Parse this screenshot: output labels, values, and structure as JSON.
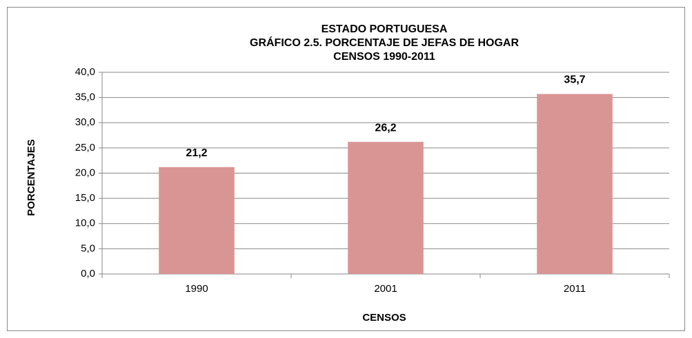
{
  "chart_data": {
    "type": "bar",
    "title": [
      "ESTADO PORTUGUESA",
      "GRÁFICO 2.5. PORCENTAJE  DE JEFAS DE HOGAR",
      "CENSOS 1990-2011"
    ],
    "x_label": "CENSOS",
    "y_label": "PORCENTAJES",
    "categories": [
      "1990",
      "2001",
      "2011"
    ],
    "values": [
      21.2,
      26.2,
      35.7
    ],
    "value_labels": [
      "21,2",
      "26,2",
      "35,7"
    ],
    "color": "#d99594",
    "ylim": [
      0,
      40
    ],
    "yticks": [
      {
        "value": 0,
        "label": "0,0"
      },
      {
        "value": 5,
        "label": "5,0"
      },
      {
        "value": 10,
        "label": "10,0"
      },
      {
        "value": 15,
        "label": "15,0"
      },
      {
        "value": 20,
        "label": "20,0"
      },
      {
        "value": 25,
        "label": "25,0"
      },
      {
        "value": 30,
        "label": "30,0"
      },
      {
        "value": 35,
        "label": "35,0"
      },
      {
        "value": 40,
        "label": "40,0"
      }
    ],
    "grid": true
  }
}
